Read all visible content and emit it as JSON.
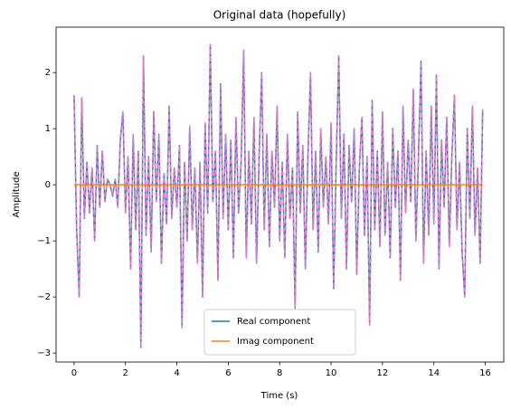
{
  "chart_data": {
    "type": "line",
    "title": "Original data (hopefully)",
    "xlabel": "Time (s)",
    "ylabel": "Amplitude",
    "x": [
      0,
      0.1,
      0.2,
      0.3,
      0.4,
      0.5,
      0.6,
      0.7,
      0.8,
      0.9,
      1,
      1.1,
      1.2,
      1.3,
      1.4,
      1.5,
      1.6,
      1.7,
      1.8,
      1.9,
      2,
      2.1,
      2.2,
      2.3,
      2.4,
      2.5,
      2.6,
      2.7,
      2.8,
      2.9,
      3,
      3.1,
      3.2,
      3.3,
      3.4,
      3.5,
      3.6,
      3.7,
      3.8,
      3.9,
      4,
      4.1,
      4.2,
      4.3,
      4.4,
      4.5,
      4.6,
      4.7,
      4.8,
      4.9,
      5,
      5.1,
      5.2,
      5.3,
      5.4,
      5.5,
      5.6,
      5.7,
      5.8,
      5.9,
      6,
      6.1,
      6.2,
      6.3,
      6.4,
      6.5,
      6.6,
      6.7,
      6.8,
      6.9,
      7,
      7.1,
      7.2,
      7.3,
      7.4,
      7.5,
      7.6,
      7.7,
      7.8,
      7.9,
      8,
      8.1,
      8.2,
      8.3,
      8.4,
      8.5,
      8.6,
      8.7,
      8.8,
      8.9,
      9,
      9.1,
      9.2,
      9.3,
      9.4,
      9.5,
      9.6,
      9.7,
      9.8,
      9.9,
      10,
      10.1,
      10.2,
      10.3,
      10.4,
      10.5,
      10.6,
      10.7,
      10.8,
      10.9,
      11,
      11.1,
      11.2,
      11.3,
      11.4,
      11.5,
      11.6,
      11.7,
      11.8,
      11.9,
      12,
      12.1,
      12.2,
      12.3,
      12.4,
      12.5,
      12.6,
      12.7,
      12.8,
      12.9,
      13,
      13.1,
      13.2,
      13.3,
      13.4,
      13.5,
      13.6,
      13.7,
      13.8,
      13.9,
      14,
      14.1,
      14.2,
      14.3,
      14.4,
      14.5,
      14.6,
      14.7,
      14.8,
      14.9,
      15,
      15.1,
      15.2,
      15.3,
      15.4,
      15.5,
      15.6,
      15.7,
      15.8,
      15.9
    ],
    "series": [
      {
        "name": "Real component",
        "color": "#1f77b4",
        "linestyle": "solid",
        "values": [
          1.6,
          -0.8,
          -2.0,
          1.55,
          -0.6,
          0.4,
          -0.5,
          0.3,
          -1.0,
          0.7,
          -0.4,
          0.6,
          -0.3,
          0.1,
          0.0,
          -0.2,
          0.1,
          -0.4,
          0.8,
          1.3,
          -0.5,
          0.5,
          -1.5,
          0.9,
          -0.8,
          0.6,
          -2.9,
          2.3,
          -0.9,
          0.5,
          -1.2,
          1.3,
          -0.3,
          0.9,
          -1.4,
          0.2,
          -0.7,
          1.4,
          -0.6,
          0.3,
          -0.4,
          0.7,
          -2.55,
          0.4,
          -1.0,
          1.05,
          -0.8,
          0.3,
          -1.4,
          0.4,
          -2.0,
          1.1,
          -0.5,
          2.5,
          -0.3,
          0.6,
          -1.7,
          1.8,
          -0.6,
          0.9,
          -0.8,
          0.8,
          -1.3,
          1.2,
          -0.5,
          0.4,
          2.4,
          -1.3,
          0.6,
          -0.7,
          1.2,
          -1.4,
          0.5,
          2.0,
          -0.8,
          0.9,
          -1.1,
          0.6,
          -0.4,
          1.4,
          -1.0,
          0.4,
          -1.3,
          0.9,
          -0.6,
          0.3,
          -2.2,
          1.3,
          -0.5,
          0.7,
          -1.5,
          0.5,
          2.0,
          -0.8,
          0.6,
          -1.2,
          1.0,
          -0.4,
          0.5,
          -0.7,
          1.1,
          -1.85,
          0.4,
          2.3,
          -0.6,
          0.9,
          -1.5,
          0.7,
          -0.3,
          1.0,
          -1.6,
          0.3,
          1.2,
          -0.9,
          0.5,
          -2.5,
          1.5,
          -0.8,
          0.6,
          -1.1,
          1.3,
          -0.9,
          0.4,
          -1.3,
          1.0,
          -0.4,
          0.6,
          -1.7,
          1.4,
          -0.5,
          0.8,
          -0.3,
          1.7,
          -1.0,
          0.5,
          2.2,
          -1.4,
          0.6,
          -0.9,
          1.4,
          -0.7,
          1.95,
          -1.5,
          0.8,
          -0.4,
          1.2,
          -1.1,
          0.5,
          1.6,
          -0.8,
          0.4,
          -1.2,
          -2.0,
          1.0,
          -0.6,
          1.4,
          -0.9,
          0.3,
          -1.4,
          1.35
        ]
      },
      {
        "color": "#e377c2",
        "linestyle": "dashed",
        "values": [
          1.6,
          -0.8,
          -2.0,
          1.55,
          -0.6,
          0.4,
          -0.5,
          0.3,
          -1.0,
          0.7,
          -0.4,
          0.6,
          -0.3,
          0.1,
          0.0,
          -0.2,
          0.1,
          -0.4,
          0.8,
          1.3,
          -0.5,
          0.5,
          -1.5,
          0.9,
          -0.8,
          0.6,
          -2.9,
          2.3,
          -0.9,
          0.5,
          -1.2,
          1.3,
          -0.3,
          0.9,
          -1.4,
          0.2,
          -0.7,
          1.4,
          -0.6,
          0.3,
          -0.4,
          0.7,
          -2.55,
          0.4,
          -1.0,
          1.05,
          -0.8,
          0.3,
          -1.4,
          0.4,
          -2.0,
          1.1,
          -0.5,
          2.5,
          -0.3,
          0.6,
          -1.7,
          1.8,
          -0.6,
          0.9,
          -0.8,
          0.8,
          -1.3,
          1.2,
          -0.5,
          0.4,
          2.4,
          -1.3,
          0.6,
          -0.7,
          1.2,
          -1.4,
          0.5,
          2.0,
          -0.8,
          0.9,
          -1.1,
          0.6,
          -0.4,
          1.4,
          -1.0,
          0.4,
          -1.3,
          0.9,
          -0.6,
          0.3,
          -2.2,
          1.3,
          -0.5,
          0.7,
          -1.5,
          0.5,
          2.0,
          -0.8,
          0.6,
          -1.2,
          1.0,
          -0.4,
          0.5,
          -0.7,
          1.1,
          -1.85,
          0.4,
          2.3,
          -0.6,
          0.9,
          -1.5,
          0.7,
          -0.3,
          1.0,
          -1.6,
          0.3,
          1.2,
          -0.9,
          0.5,
          -2.5,
          1.5,
          -0.8,
          0.6,
          -1.1,
          1.3,
          -0.9,
          0.4,
          -1.3,
          1.0,
          -0.4,
          0.6,
          -1.7,
          1.4,
          -0.5,
          0.8,
          -0.3,
          1.7,
          -1.0,
          0.5,
          2.2,
          -1.4,
          0.6,
          -0.9,
          1.4,
          -0.7,
          1.95,
          -1.5,
          0.8,
          -0.4,
          1.2,
          -1.1,
          0.5,
          1.6,
          -0.8,
          0.4,
          -1.2,
          -2.0,
          1.0,
          -0.6,
          1.4,
          -0.9,
          0.3,
          -1.4,
          1.35
        ]
      },
      {
        "name": "Imag component",
        "color": "#ff7f0e",
        "linestyle": "solid",
        "values": [
          0,
          0,
          0,
          0,
          0,
          0,
          0,
          0,
          0,
          0,
          0,
          0,
          0,
          0,
          0,
          0,
          0,
          0,
          0,
          0,
          0,
          0,
          0,
          0,
          0,
          0,
          0,
          0,
          0,
          0,
          0,
          0,
          0,
          0,
          0,
          0,
          0,
          0,
          0,
          0,
          0,
          0,
          0,
          0,
          0,
          0,
          0,
          0,
          0,
          0,
          0,
          0,
          0,
          0,
          0,
          0,
          0,
          0,
          0,
          0,
          0,
          0,
          0,
          0,
          0,
          0,
          0,
          0,
          0,
          0,
          0,
          0,
          0,
          0,
          0,
          0,
          0,
          0,
          0,
          0,
          0,
          0,
          0,
          0,
          0,
          0,
          0,
          0,
          0,
          0,
          0,
          0,
          0,
          0,
          0,
          0,
          0,
          0,
          0,
          0,
          0,
          0,
          0,
          0,
          0,
          0,
          0,
          0,
          0,
          0,
          0,
          0,
          0,
          0,
          0,
          0,
          0,
          0,
          0,
          0,
          0,
          0,
          0,
          0,
          0,
          0,
          0,
          0,
          0,
          0,
          0,
          0,
          0,
          0,
          0,
          0,
          0,
          0,
          0,
          0,
          0,
          0,
          0,
          0,
          0,
          0,
          0,
          0,
          0,
          0,
          0,
          0,
          0,
          0,
          0,
          0,
          0,
          0,
          0,
          0
        ]
      }
    ],
    "xlim": [
      -0.7,
      16.72
    ],
    "ylim": [
      -3.16,
      2.81
    ],
    "xticks": [
      0,
      2,
      4,
      6,
      8,
      10,
      12,
      14,
      16
    ],
    "yticks": [
      {
        "value": -3,
        "label": "−3"
      },
      {
        "value": -2,
        "label": "−2"
      },
      {
        "value": -1,
        "label": "−1"
      },
      0,
      1,
      2
    ],
    "grid": false,
    "legend": "lower center"
  }
}
